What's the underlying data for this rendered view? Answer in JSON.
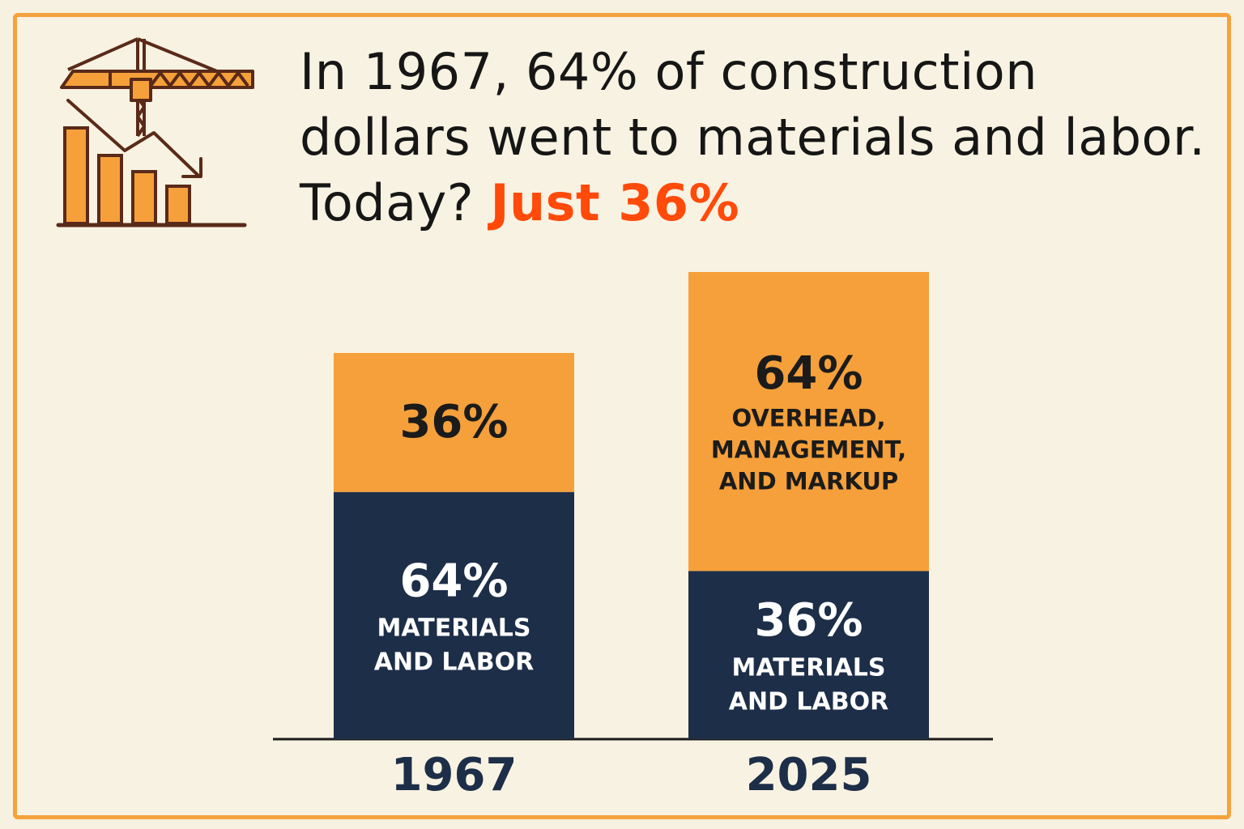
{
  "headline": {
    "line1": "In 1967, 64% of construction",
    "line2": "dollars went to materials and labor.",
    "line3_prefix": "Today? ",
    "line3_highlight": "Just 36%"
  },
  "icon": "construction-crane-declining-bars-icon",
  "colors": {
    "background": "#f7f1e1",
    "border": "#f4a23c",
    "orange": "#f5a03a",
    "navy": "#1d2e48",
    "accent_red": "#ff4a0a",
    "icon_outline": "#5a2a18"
  },
  "chart_data": {
    "type": "bar",
    "stacked": true,
    "categories": [
      "1967",
      "2025"
    ],
    "series": [
      {
        "values": [
          64,
          36
        ],
        "labels": [
          "64%",
          "36%"
        ],
        "text": [
          [
            "MATERIALS",
            "AND LABOR"
          ],
          [
            "MATERIALS",
            "AND LABOR"
          ]
        ],
        "color": "#1d2e48"
      },
      {
        "values": [
          36,
          64
        ],
        "labels": [
          "36%",
          "64%"
        ],
        "text": [
          [],
          [
            "OVERHEAD,",
            "MANAGEMENT,",
            "AND MARKUP"
          ]
        ],
        "color": "#f5a03a"
      }
    ],
    "bar_totals": [
      100,
      100
    ],
    "title": "",
    "xlabel": "",
    "ylabel": "",
    "grid": false,
    "legend": "none"
  }
}
